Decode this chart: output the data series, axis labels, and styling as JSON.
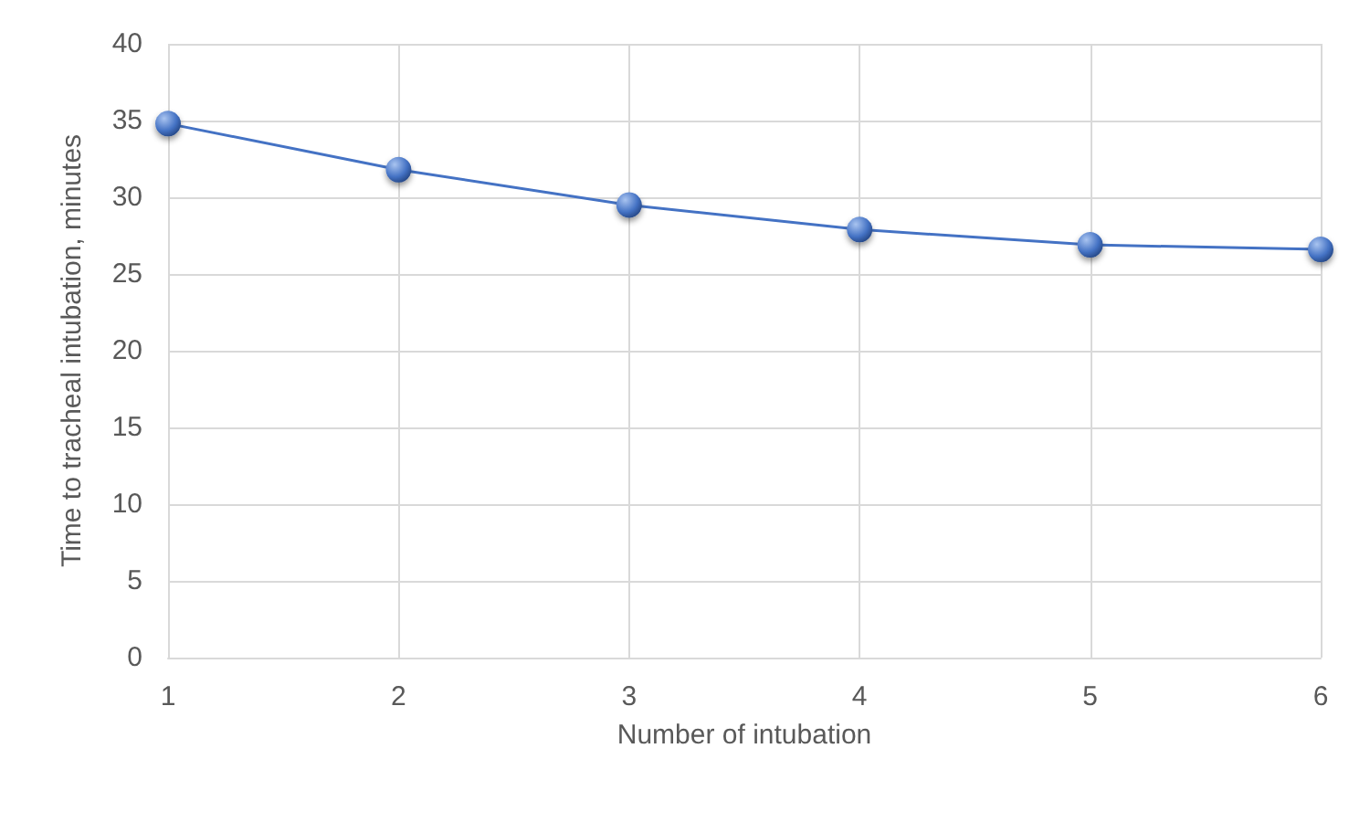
{
  "chart_data": {
    "type": "line",
    "xlabel": "Number of intubation",
    "ylabel": "Time to tracheal intubation, minutes",
    "x": [
      1,
      2,
      3,
      4,
      5,
      6
    ],
    "series": [
      {
        "color": "#4472c4",
        "values": [
          34.8,
          31.8,
          29.5,
          27.9,
          26.9,
          26.6
        ]
      }
    ],
    "xlim": [
      1,
      6
    ],
    "xticks": [
      1,
      2,
      3,
      4,
      5,
      6
    ],
    "ylim": [
      0,
      40
    ],
    "yticks": [
      0,
      5,
      10,
      15,
      20,
      25,
      30,
      35,
      40
    ],
    "grid": true,
    "marker": "circle",
    "line_style": "solid"
  }
}
